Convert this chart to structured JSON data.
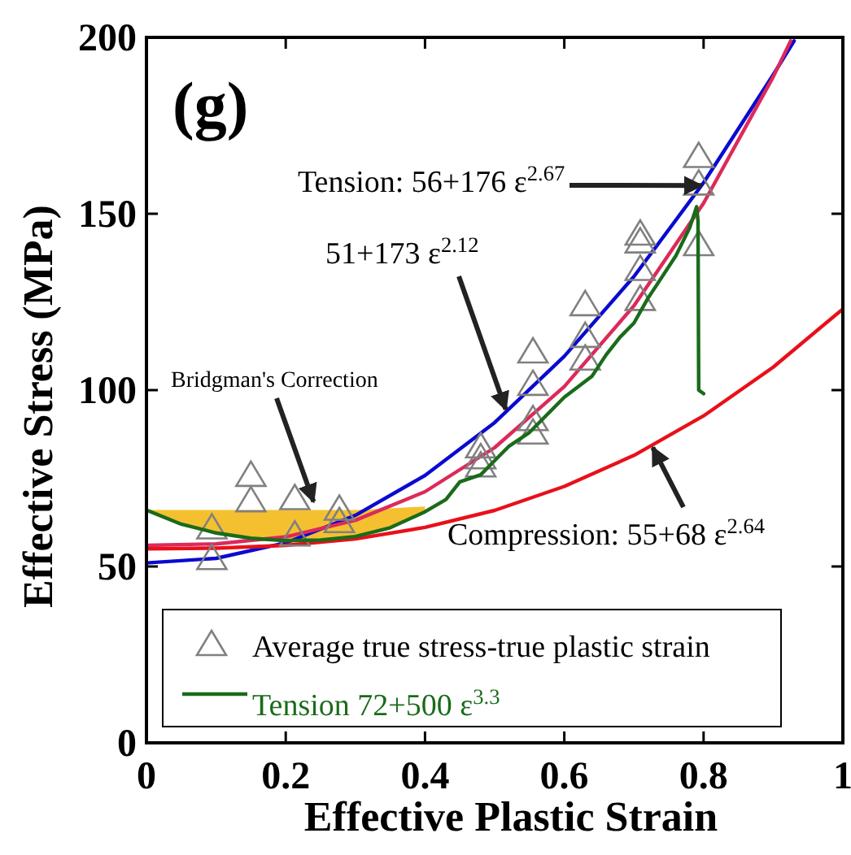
{
  "chart_data": {
    "type": "line",
    "xlabel": "Effective Plastic Strain",
    "ylabel": "Effective Stress (MPa)",
    "xlim": [
      0,
      1
    ],
    "ylim": [
      0,
      200
    ],
    "xticks": [
      0,
      0.2,
      0.4,
      0.6,
      0.8,
      1
    ],
    "yticks": [
      0,
      50,
      100,
      150,
      200
    ],
    "grid": false,
    "legend": "bottom",
    "annotations": [
      "(g)",
      {
        "text": "Tension: 56+176 ε$^{2.67}$",
        "x": 0.797,
        "y": 158
      },
      {
        "text": "51+173 ε$^{2.12}$",
        "x": 0.516,
        "y": 94.5
      },
      {
        "text": "Bridgman's Correction",
        "x": 0.24,
        "y": 68.4
      },
      {
        "text": "Compression: 55+68 ε$^{2.64}$",
        "x": 0.727,
        "y": 83.7
      }
    ],
    "series": [
      {
        "color": "#0a0ad0",
        "x": [
          0,
          0.1,
          0.2,
          0.3,
          0.4,
          0.5,
          0.6,
          0.7,
          0.8,
          0.9,
          0.93
        ],
        "values": [
          51,
          52.3,
          56.7,
          64.5,
          75.8,
          90.8,
          109.6,
          132.2,
          158.8,
          189.4,
          199
        ]
      },
      {
        "color": "#dc2a5a",
        "x": [
          0,
          0.1,
          0.2,
          0.3,
          0.4,
          0.5,
          0.6,
          0.7,
          0.8,
          0.9,
          0.925
        ],
        "values": [
          56,
          56.4,
          58.4,
          63.1,
          71.2,
          83.7,
          101,
          123.9,
          153,
          188.8,
          199
        ]
      },
      {
        "color": "#e8101a",
        "x": [
          0,
          0.1,
          0.2,
          0.3,
          0.4,
          0.5,
          0.6,
          0.7,
          0.8,
          0.9,
          1
        ],
        "values": [
          55,
          55.2,
          56,
          57.8,
          61.1,
          65.9,
          72.7,
          81.5,
          92.7,
          106.5,
          123
        ]
      },
      {
        "type": "scatter",
        "name": "Average true stress-true plastic strain",
        "color": "#808080",
        "marker": "triangle",
        "x": [
          0.094,
          0.094,
          0.15,
          0.15,
          0.213,
          0.213,
          0.277,
          0.277,
          0.48,
          0.48,
          0.48,
          0.555,
          0.555,
          0.555,
          0.555,
          0.63,
          0.63,
          0.63,
          0.709,
          0.709,
          0.709,
          0.709,
          0.793,
          0.793,
          0.793
        ],
        "values": [
          52,
          60.7,
          75.6,
          68.4,
          69,
          58.7,
          66,
          62.5,
          83.7,
          80.6,
          78.3,
          110.6,
          101.4,
          91.4,
          87.6,
          124,
          115,
          108.6,
          144,
          141.8,
          134,
          125.5,
          166,
          158.2,
          141
        ]
      },
      {
        "name": "Tension 72+500 ε$^{3.3}$",
        "color": "#1a6b1a",
        "x": [
          0,
          0.05,
          0.1,
          0.15,
          0.2,
          0.25,
          0.3,
          0.35,
          0.4,
          0.43,
          0.45,
          0.48,
          0.5,
          0.52,
          0.55,
          0.57,
          0.6,
          0.62,
          0.64,
          0.66,
          0.68,
          0.7,
          0.72,
          0.74,
          0.76,
          0.78,
          0.79,
          0.792,
          0.793,
          0.8
        ],
        "values": [
          66,
          62,
          59.5,
          58,
          57.3,
          57.5,
          58.5,
          61,
          65.5,
          69,
          74,
          76,
          80,
          84,
          88,
          92,
          98,
          101,
          104,
          110,
          115,
          119,
          126,
          132,
          138,
          146,
          152,
          148,
          100,
          99
        ],
        "lower": [
          66,
          62,
          59.5,
          58,
          57.3,
          57.5,
          58.5,
          61,
          65.5,
          null,
          null,
          null,
          null,
          null,
          null,
          null,
          null,
          null,
          null,
          null,
          null,
          null,
          null,
          null,
          null,
          null,
          null,
          null,
          null,
          null
        ],
        "upper": [
          66,
          66,
          66,
          66,
          66,
          66,
          66,
          66.5,
          67,
          null,
          null,
          null,
          null,
          null,
          null,
          null,
          null,
          null,
          null,
          null,
          null,
          null,
          null,
          null,
          null,
          null,
          null,
          null,
          null,
          null
        ]
      }
    ]
  }
}
